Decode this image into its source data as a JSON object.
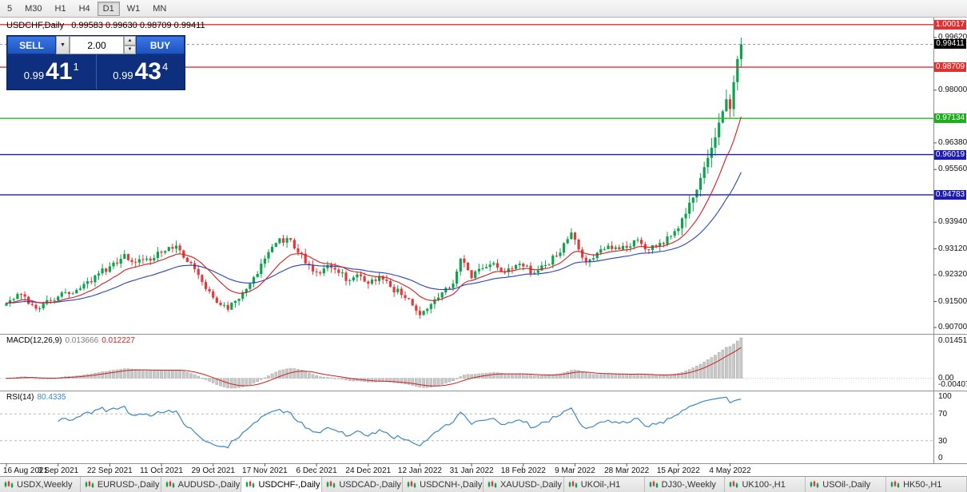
{
  "toolbar": {
    "timeframes": [
      "5",
      "M30",
      "H1",
      "H4",
      "D1",
      "W1",
      "MN"
    ],
    "active_timeframe": "D1"
  },
  "chart_header": {
    "title": "USDCHF,Daily",
    "ohlc_text": "0.99583 0.99630 0.98709 0.99411"
  },
  "trade_panel": {
    "sell_label": "SELL",
    "buy_label": "BUY",
    "volume": "2.00",
    "sell_price": {
      "prefix": "0.99",
      "big": "41",
      "sup": "1"
    },
    "buy_price": {
      "prefix": "0.99",
      "big": "43",
      "sup": "4"
    }
  },
  "price_axis": {
    "ticks": [
      "0.99620",
      "0.98000",
      "0.96380",
      "0.95560",
      "0.93940",
      "0.93120",
      "0.92320",
      "0.91500",
      "0.90700"
    ],
    "badges": [
      {
        "text": "1.00017",
        "price": 1.00017,
        "bg": "#e03030"
      },
      {
        "text": "0.99411",
        "price": 0.99411,
        "bg": "#000000"
      },
      {
        "text": "0.98709",
        "price": 0.98709,
        "bg": "#e03030"
      },
      {
        "text": "0.97134",
        "price": 0.97134,
        "bg": "#1fae1f"
      },
      {
        "text": "0.96019",
        "price": 0.96019,
        "bg": "#1c1cb0"
      },
      {
        "text": "0.94783",
        "price": 0.94783,
        "bg": "#1c1cb0"
      }
    ]
  },
  "chart_data": {
    "type": "candlestick",
    "symbol": "USDCHF",
    "timeframe": "Daily",
    "bars": 200,
    "x_label_step": 14,
    "x_labels": [
      "16 Aug 2021",
      "3 Sep 2021",
      "22 Sep 2021",
      "11 Oct 2021",
      "29 Oct 2021",
      "17 Nov 2021",
      "6 Dec 2021",
      "24 Dec 2021",
      "12 Jan 2022",
      "31 Jan 2022",
      "18 Feb 2022",
      "9 Mar 2022",
      "28 Mar 2022",
      "15 Apr 2022",
      "4 May 2022"
    ],
    "price_range": {
      "top": 1.00234,
      "bottom": 0.90505
    },
    "last_bar": {
      "open": 0.99583,
      "high": 0.9963,
      "low": 0.98709,
      "close": 0.99411
    },
    "bid": 0.99411,
    "ask": 0.99434,
    "seed": 42,
    "close_waypoints": [
      [
        0,
        0.9145
      ],
      [
        4,
        0.9172
      ],
      [
        8,
        0.9128
      ],
      [
        14,
        0.9165
      ],
      [
        20,
        0.919
      ],
      [
        24,
        0.923
      ],
      [
        28,
        0.9258
      ],
      [
        32,
        0.9296
      ],
      [
        35,
        0.927
      ],
      [
        38,
        0.9282
      ],
      [
        42,
        0.93
      ],
      [
        46,
        0.9322
      ],
      [
        50,
        0.9268
      ],
      [
        53,
        0.921
      ],
      [
        56,
        0.9162
      ],
      [
        60,
        0.9125
      ],
      [
        64,
        0.9178
      ],
      [
        67,
        0.9225
      ],
      [
        70,
        0.9282
      ],
      [
        73,
        0.933
      ],
      [
        76,
        0.9345
      ],
      [
        79,
        0.93
      ],
      [
        82,
        0.9262
      ],
      [
        84,
        0.924
      ],
      [
        87,
        0.9262
      ],
      [
        90,
        0.9238
      ],
      [
        93,
        0.9215
      ],
      [
        96,
        0.9228
      ],
      [
        98,
        0.9205
      ],
      [
        101,
        0.9228
      ],
      [
        104,
        0.9195
      ],
      [
        107,
        0.917
      ],
      [
        110,
        0.9138
      ],
      [
        112,
        0.9108
      ],
      [
        115,
        0.9142
      ],
      [
        118,
        0.9178
      ],
      [
        121,
        0.9205
      ],
      [
        123,
        0.9282
      ],
      [
        126,
        0.9222
      ],
      [
        129,
        0.9252
      ],
      [
        132,
        0.9268
      ],
      [
        135,
        0.924
      ],
      [
        138,
        0.9262
      ],
      [
        140,
        0.9258
      ],
      [
        143,
        0.9238
      ],
      [
        146,
        0.9262
      ],
      [
        149,
        0.929
      ],
      [
        152,
        0.9342
      ],
      [
        153,
        0.9362
      ],
      [
        155,
        0.931
      ],
      [
        157,
        0.9272
      ],
      [
        160,
        0.93
      ],
      [
        163,
        0.9322
      ],
      [
        166,
        0.931
      ],
      [
        168,
        0.9315
      ],
      [
        171,
        0.934
      ],
      [
        174,
        0.9308
      ],
      [
        177,
        0.933
      ],
      [
        180,
        0.9352
      ],
      [
        182,
        0.9375
      ],
      [
        184,
        0.942
      ],
      [
        186,
        0.947
      ],
      [
        188,
        0.953
      ],
      [
        190,
        0.9592
      ],
      [
        192,
        0.9655
      ],
      [
        193,
        0.97
      ],
      [
        194,
        0.9735
      ],
      [
        195,
        0.9772
      ],
      [
        196,
        0.9742
      ],
      [
        197,
        0.9825
      ],
      [
        198,
        0.9896
      ],
      [
        199,
        0.99411
      ]
    ],
    "hlines": [
      {
        "price": 1.00017,
        "color": "#e03030"
      },
      {
        "price": 0.98709,
        "color": "#e03030"
      },
      {
        "price": 0.97134,
        "color": "#17c117"
      },
      {
        "price": 0.96019,
        "color": "#1c1cb0"
      },
      {
        "price": 0.94783,
        "color": "#1c1cb0"
      }
    ],
    "colors": {
      "up": "#0ca24e",
      "down": "#e03a3a",
      "ma_fast": "#cc2020",
      "ma_slow": "#2743b8",
      "rsi_line": "#3a87c8",
      "macd_hist": "#c8c8c8",
      "macd_signal": "#cc2020"
    }
  },
  "macd_panel": {
    "name": "MACD(12,26,9)",
    "value_main": "0.013666",
    "value_signal": "0.012227",
    "axis_top": "0.01451",
    "axis_zero": "0.00",
    "axis_bottom": "-0.004071"
  },
  "rsi_panel": {
    "name": "RSI(14)",
    "value": "80.4335",
    "axis": [
      "100",
      "70",
      "30",
      "0"
    ],
    "upper_level": 70,
    "lower_level": 30
  },
  "date_axis": {
    "labels": [
      "16 Aug 2021",
      "3 Sep 2021",
      "22 Sep 2021",
      "11 Oct 2021",
      "29 Oct 2021",
      "17 Nov 2021",
      "6 Dec 2021",
      "24 Dec 2021",
      "12 Jan 2022",
      "31 Jan 2022",
      "18 Feb 2022",
      "9 Mar 2022",
      "28 Mar 2022",
      "15 Apr 2022",
      "4 May 2022"
    ]
  },
  "tabs": {
    "items": [
      "USDX,Weekly",
      "EURUSD-,Daily",
      "AUDUSD-,Daily",
      "USDCHF-,Daily",
      "USDCAD-,Daily",
      "USDCNH-,Daily",
      "XAUUSD-,Daily",
      "UKOil-,H1",
      "DJ30-,Weekly",
      "UK100-,H1",
      "USOil-,Daily",
      "HK50-,H1"
    ],
    "active_index": 3
  }
}
